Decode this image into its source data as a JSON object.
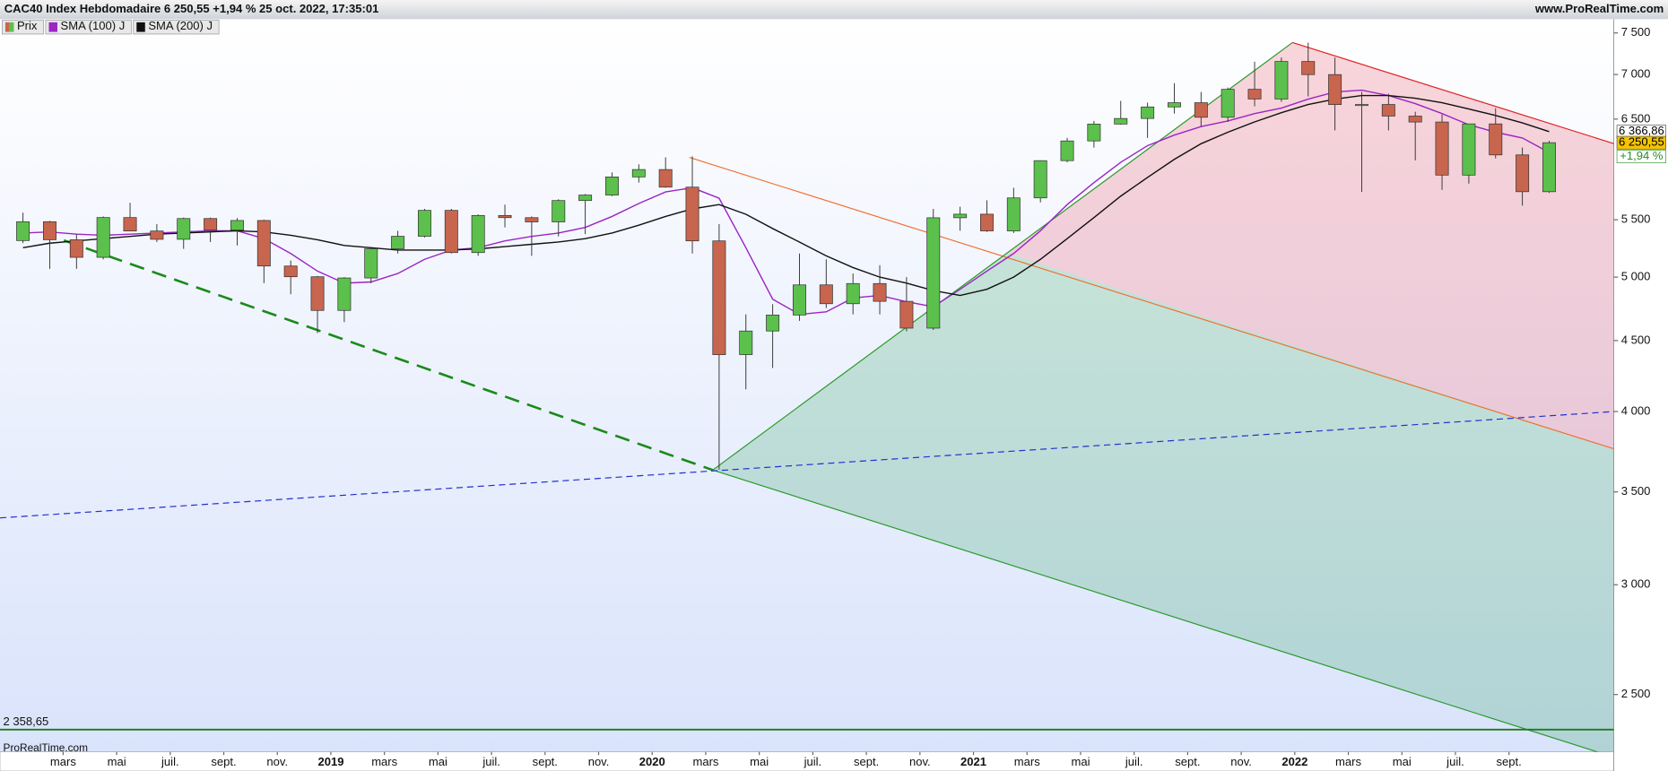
{
  "chart_data": {
    "type": "candlestick",
    "title": "CAC40 Index Hebdomadaire 6 250,55 +1,94 % 25 oct. 2022, 17:35:01",
    "source": "www.ProRealTime.com",
    "watermark": "ProRealTime.com",
    "log_scale": true,
    "grid": false,
    "ylim": [
      2273,
      7674
    ],
    "yticks": [
      {
        "value": 2500,
        "label": "2 500"
      },
      {
        "value": 3000,
        "label": "3 000"
      },
      {
        "value": 3500,
        "label": "3 500"
      },
      {
        "value": 4000,
        "label": "4 000"
      },
      {
        "value": 4500,
        "label": "4 500"
      },
      {
        "value": 5000,
        "label": "5 000"
      },
      {
        "value": 5500,
        "label": "5 500"
      },
      {
        "value": 6500,
        "label": "6 500"
      },
      {
        "value": 7000,
        "label": "7 000"
      },
      {
        "value": 7500,
        "label": "7 500"
      }
    ],
    "categories": [
      null,
      null,
      "mars",
      null,
      "mai",
      null,
      "juil.",
      null,
      "sept.",
      null,
      "nov.",
      null,
      "2019",
      null,
      "mars",
      null,
      "mai",
      null,
      "juil.",
      null,
      "sept.",
      null,
      "nov.",
      null,
      "2020",
      null,
      "mars",
      null,
      "mai",
      null,
      "juil.",
      null,
      "sept.",
      null,
      "nov.",
      null,
      "2021",
      null,
      "mars",
      null,
      "mai",
      null,
      "juil.",
      null,
      "sept.",
      null,
      "nov.",
      null,
      "2022",
      null,
      "mars",
      null,
      "mai",
      null,
      "juil.",
      null,
      "sept.",
      null
    ],
    "series": [
      {
        "name": "Prix",
        "type": "candlestick",
        "up_color": "#5cc04c",
        "down_color": "#c8654e",
        "open": [
          5313,
          5482,
          5320,
          5167,
          5520,
          5398,
          5324,
          5511,
          5406,
          5493,
          5093,
          5003,
          4731,
          4993,
          5241,
          5351,
          5586,
          5208,
          5539,
          5519,
          5480,
          5678,
          5730,
          5905,
          5978,
          5806,
          5310,
          4396,
          4572,
          4695,
          4936,
          4784,
          4947,
          4803,
          4594,
          5518,
          5551,
          5399,
          5703,
          6067,
          6269,
          6447,
          6507,
          6633,
          6680,
          6520,
          6830,
          6721,
          7153,
          6999,
          6659,
          6660,
          6533,
          6469,
          5923,
          6449,
          6125,
          5762
        ],
        "high": [
          5565,
          5490,
          5370,
          5530,
          5657,
          5460,
          5520,
          5520,
          5515,
          5500,
          5140,
          5010,
          5000,
          5250,
          5400,
          5600,
          5600,
          5550,
          5640,
          5530,
          5690,
          5740,
          5950,
          6030,
          6100,
          6111,
          5460,
          4700,
          4780,
          5200,
          5150,
          5030,
          5100,
          5000,
          5600,
          5620,
          5680,
          5800,
          6070,
          6300,
          6480,
          6700,
          6680,
          6900,
          6800,
          6850,
          7150,
          7200,
          7380,
          7200,
          6800,
          6780,
          6580,
          6550,
          6450,
          6620,
          6200,
          6270
        ],
        "low": [
          5290,
          5069,
          5069,
          5150,
          5400,
          5300,
          5240,
          5300,
          5270,
          4950,
          4860,
          4556,
          4640,
          4950,
          5200,
          5340,
          5200,
          5180,
          5430,
          5180,
          5350,
          5370,
          5720,
          5850,
          5800,
          5200,
          3632,
          4150,
          4300,
          4650,
          4750,
          4700,
          4700,
          4570,
          4580,
          5400,
          5390,
          5380,
          5660,
          6050,
          6200,
          6440,
          6300,
          6560,
          6420,
          6470,
          6640,
          6690,
          6750,
          6380,
          5760,
          6380,
          6070,
          5780,
          5840,
          6090,
          5630,
          5750
        ],
        "close": [
          5482,
          5320,
          5167,
          5520,
          5398,
          5324,
          5511,
          5406,
          5493,
          5093,
          5003,
          4731,
          4993,
          5241,
          5351,
          5586,
          5208,
          5539,
          5519,
          5480,
          5678,
          5730,
          5905,
          5978,
          5806,
          5310,
          4396,
          4572,
          4695,
          4936,
          4784,
          4947,
          4803,
          4594,
          5518,
          5551,
          5399,
          5703,
          6067,
          6269,
          6447,
          6507,
          6633,
          6680,
          6520,
          6830,
          6721,
          7153,
          6999,
          6659,
          6660,
          6533,
          6469,
          5923,
          6449,
          6125,
          5762,
          6250.55
        ]
      },
      {
        "name": "SMA (100) J",
        "color": "#9a26c4",
        "values": [
          5380,
          5390,
          5370,
          5360,
          5370,
          5380,
          5390,
          5400,
          5400,
          5330,
          5200,
          5050,
          4950,
          4960,
          5030,
          5150,
          5230,
          5250,
          5310,
          5350,
          5380,
          5430,
          5530,
          5650,
          5760,
          5800,
          5700,
          5250,
          4820,
          4700,
          4720,
          4830,
          4850,
          4800,
          4760,
          4900,
          5050,
          5200,
          5400,
          5640,
          5850,
          6050,
          6220,
          6330,
          6420,
          6480,
          6560,
          6620,
          6720,
          6800,
          6820,
          6760,
          6670,
          6560,
          6440,
          6360,
          6300,
          6150
        ]
      },
      {
        "name": "SMA (200) J",
        "color": "#111111",
        "values": [
          5250,
          5290,
          5310,
          5330,
          5350,
          5370,
          5380,
          5390,
          5400,
          5390,
          5360,
          5320,
          5270,
          5250,
          5230,
          5230,
          5230,
          5240,
          5260,
          5280,
          5300,
          5330,
          5380,
          5450,
          5530,
          5600,
          5640,
          5550,
          5420,
          5300,
          5180,
          5080,
          5000,
          4950,
          4890,
          4850,
          4900,
          5000,
          5150,
          5330,
          5520,
          5720,
          5900,
          6080,
          6240,
          6360,
          6470,
          6570,
          6660,
          6720,
          6760,
          6760,
          6730,
          6680,
          6610,
          6540,
          6460,
          6366.86
        ]
      }
    ],
    "last_values": [
      {
        "value": 6366.86,
        "label": "6 366,86",
        "color": "#ffffff",
        "text_color": "#000000"
      },
      {
        "value": 6250.55,
        "label": "6 250,55",
        "color": "#f5c400",
        "text_color": "#000000"
      }
    ],
    "change_label": "+1,94 %",
    "hline": {
      "value": 2358.65,
      "label": "2 358,65",
      "color": "#1f7a1f"
    }
  }
}
